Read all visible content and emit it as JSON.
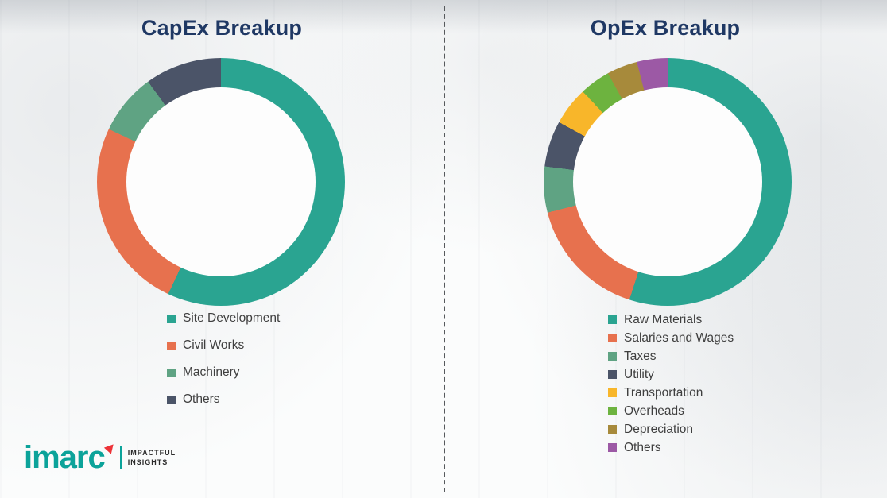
{
  "chart_data": [
    {
      "type": "pie",
      "variant": "donut",
      "title": "CapEx Breakup",
      "legend_position": "bottom",
      "items": [
        {
          "label": "Site Development",
          "color": "#2aa491",
          "value": 57
        },
        {
          "label": "Civil Works",
          "color": "#e7714e",
          "value": 25
        },
        {
          "label": "Machinery",
          "color": "#5fa383",
          "value": 8
        },
        {
          "label": "Others",
          "color": "#4b5468",
          "value": 10
        }
      ],
      "note": "values are estimated percentages read from arc angles; no numeric labels shown"
    },
    {
      "type": "pie",
      "variant": "donut",
      "title": "OpEx Breakup",
      "legend_position": "bottom",
      "items": [
        {
          "label": "Raw Materials",
          "color": "#2aa491",
          "value": 55
        },
        {
          "label": "Salaries and Wages",
          "color": "#e7714e",
          "value": 16
        },
        {
          "label": "Taxes",
          "color": "#5fa383",
          "value": 6
        },
        {
          "label": "Utility",
          "color": "#4b5468",
          "value": 6
        },
        {
          "label": "Transportation",
          "color": "#f8b62a",
          "value": 5
        },
        {
          "label": "Overheads",
          "color": "#6db33f",
          "value": 4
        },
        {
          "label": "Depreciation",
          "color": "#a78a3b",
          "value": 4
        },
        {
          "label": "Others",
          "color": "#9c59a5",
          "value": 4
        }
      ],
      "note": "values are estimated percentages read from arc angles; no numeric labels shown"
    }
  ],
  "colors": {
    "title": "#1f3864",
    "legend_text": "#3f3f3f",
    "logo_teal": "#0ca39a",
    "logo_red": "#ed3237"
  },
  "logo": {
    "name": "imarc",
    "tagline_line1": "IMPACTFUL",
    "tagline_line2": "INSIGHTS"
  }
}
